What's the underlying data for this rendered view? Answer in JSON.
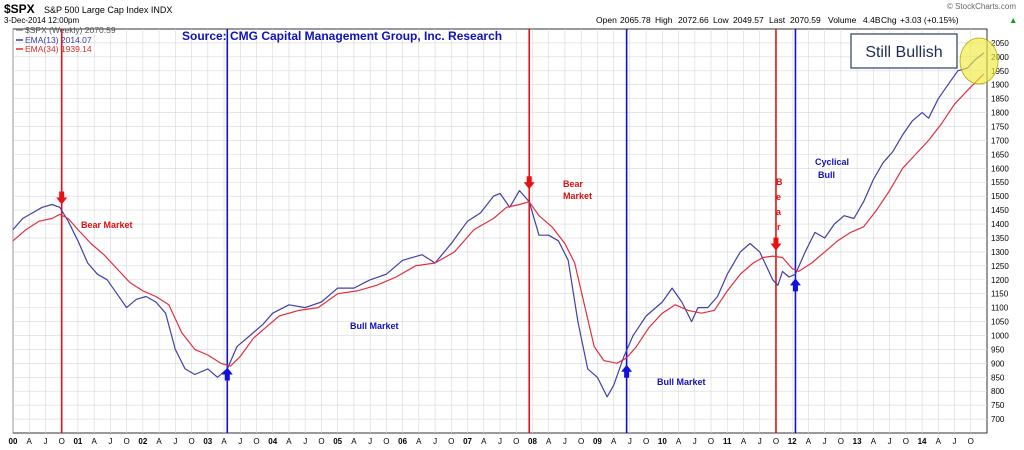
{
  "header": {
    "symbol": "$SPX",
    "name": "S&P 500 Large Cap Index INDX",
    "date": "3-Dec-2014 12:00pm",
    "brand": "© StockCharts.com",
    "quote": {
      "open_label": "Open",
      "open": "2065.78",
      "high_label": "High",
      "high": "2072.66",
      "low_label": "Low",
      "low": "2049.57",
      "last_label": "Last",
      "last": "2070.59",
      "volume_label": "Volume",
      "volume": "4.4B",
      "chg_label": "Chg",
      "chg": "+3.03 (+0.15%)",
      "chg_arrow": "▲"
    },
    "legend": [
      {
        "text": "$SPX (Weekly) 2070.59",
        "color": "#8a8a8a"
      },
      {
        "text": "EMA(13) 2014.07",
        "color": "#3a3aa8"
      },
      {
        "text": "EMA(34) 1939.14",
        "color": "#e02a2a"
      }
    ]
  },
  "source_text": "Source: CMG Capital Management Group, Inc. Research",
  "callout_text": "Still Bullish",
  "colors": {
    "ema13": "#4040a8",
    "ema34": "#e03040",
    "bear_line": "#e81010",
    "bull_line": "#1010d0",
    "bear_text": "#e01010",
    "bull_text": "#1010c0",
    "grid": "#d8d8d8",
    "highlight": "#f0ea40"
  },
  "annotations": {
    "bear_market_1": "Bear Market",
    "bull_market_1": "Bull Market",
    "bear_market_2_line1": "Bear",
    "bear_market_2_line2": "Market",
    "bull_market_2": "Bull Market",
    "bear_vertical": [
      "B",
      "e",
      "a",
      "r"
    ],
    "cyclical_bull_line1": "Cyclical",
    "cyclical_bull_line2": "Bull"
  },
  "chart_data": {
    "type": "line",
    "ylim": [
      650,
      2100
    ],
    "xlim": [
      2000.0,
      2015.0
    ],
    "y_ticks": [
      700,
      750,
      800,
      850,
      900,
      950,
      1000,
      1050,
      1100,
      1150,
      1200,
      1250,
      1300,
      1350,
      1400,
      1450,
      1500,
      1550,
      1600,
      1650,
      1700,
      1750,
      1800,
      1850,
      1900,
      1950,
      2000,
      2050
    ],
    "x_ticks": [
      {
        "x": 2000.0,
        "label": "00",
        "bold": true
      },
      {
        "x": 2000.25,
        "label": "A"
      },
      {
        "x": 2000.5,
        "label": "J"
      },
      {
        "x": 2000.75,
        "label": "O"
      },
      {
        "x": 2001.0,
        "label": "01",
        "bold": true
      },
      {
        "x": 2001.25,
        "label": "A"
      },
      {
        "x": 2001.5,
        "label": "J"
      },
      {
        "x": 2001.75,
        "label": "O"
      },
      {
        "x": 2002.0,
        "label": "02",
        "bold": true
      },
      {
        "x": 2002.25,
        "label": "A"
      },
      {
        "x": 2002.5,
        "label": "J"
      },
      {
        "x": 2002.75,
        "label": "O"
      },
      {
        "x": 2003.0,
        "label": "03",
        "bold": true
      },
      {
        "x": 2003.25,
        "label": "A"
      },
      {
        "x": 2003.5,
        "label": "J"
      },
      {
        "x": 2003.75,
        "label": "O"
      },
      {
        "x": 2004.0,
        "label": "04",
        "bold": true
      },
      {
        "x": 2004.25,
        "label": "A"
      },
      {
        "x": 2004.5,
        "label": "J"
      },
      {
        "x": 2004.75,
        "label": "O"
      },
      {
        "x": 2005.0,
        "label": "05",
        "bold": true
      },
      {
        "x": 2005.25,
        "label": "A"
      },
      {
        "x": 2005.5,
        "label": "J"
      },
      {
        "x": 2005.75,
        "label": "O"
      },
      {
        "x": 2006.0,
        "label": "06",
        "bold": true
      },
      {
        "x": 2006.25,
        "label": "A"
      },
      {
        "x": 2006.5,
        "label": "J"
      },
      {
        "x": 2006.75,
        "label": "O"
      },
      {
        "x": 2007.0,
        "label": "07",
        "bold": true
      },
      {
        "x": 2007.25,
        "label": "A"
      },
      {
        "x": 2007.5,
        "label": "J"
      },
      {
        "x": 2007.75,
        "label": "O"
      },
      {
        "x": 2008.0,
        "label": "08",
        "bold": true
      },
      {
        "x": 2008.25,
        "label": "A"
      },
      {
        "x": 2008.5,
        "label": "J"
      },
      {
        "x": 2008.75,
        "label": "O"
      },
      {
        "x": 2009.0,
        "label": "09",
        "bold": true
      },
      {
        "x": 2009.25,
        "label": "A"
      },
      {
        "x": 2009.5,
        "label": "J"
      },
      {
        "x": 2009.75,
        "label": "O"
      },
      {
        "x": 2010.0,
        "label": "10",
        "bold": true
      },
      {
        "x": 2010.25,
        "label": "A"
      },
      {
        "x": 2010.5,
        "label": "J"
      },
      {
        "x": 2010.75,
        "label": "O"
      },
      {
        "x": 2011.0,
        "label": "11",
        "bold": true
      },
      {
        "x": 2011.25,
        "label": "A"
      },
      {
        "x": 2011.5,
        "label": "J"
      },
      {
        "x": 2011.75,
        "label": "O"
      },
      {
        "x": 2012.0,
        "label": "12",
        "bold": true
      },
      {
        "x": 2012.25,
        "label": "A"
      },
      {
        "x": 2012.5,
        "label": "J"
      },
      {
        "x": 2012.75,
        "label": "O"
      },
      {
        "x": 2013.0,
        "label": "13",
        "bold": true
      },
      {
        "x": 2013.25,
        "label": "A"
      },
      {
        "x": 2013.5,
        "label": "J"
      },
      {
        "x": 2013.75,
        "label": "O"
      },
      {
        "x": 2014.0,
        "label": "14",
        "bold": true
      },
      {
        "x": 2014.25,
        "label": "A"
      },
      {
        "x": 2014.5,
        "label": "J"
      },
      {
        "x": 2014.75,
        "label": "O"
      }
    ],
    "signal_lines": [
      {
        "x": 2000.75,
        "kind": "bear"
      },
      {
        "x": 2003.3,
        "kind": "bull"
      },
      {
        "x": 2007.95,
        "kind": "bear"
      },
      {
        "x": 2009.45,
        "kind": "bull"
      },
      {
        "x": 2011.75,
        "kind": "bear"
      },
      {
        "x": 2012.05,
        "kind": "bull"
      }
    ],
    "signal_arrows": [
      {
        "x": 2000.75,
        "y": 1470,
        "kind": "bear"
      },
      {
        "x": 2003.3,
        "y": 885,
        "kind": "bull"
      },
      {
        "x": 2007.95,
        "y": 1525,
        "kind": "bear"
      },
      {
        "x": 2009.45,
        "y": 895,
        "kind": "bull"
      },
      {
        "x": 2011.75,
        "y": 1305,
        "kind": "bear"
      },
      {
        "x": 2012.05,
        "y": 1205,
        "kind": "bull"
      }
    ],
    "series": [
      {
        "name": "EMA(13)",
        "x": [
          2000.0,
          2000.15,
          2000.3,
          2000.45,
          2000.6,
          2000.72,
          2000.85,
          2001.0,
          2001.15,
          2001.3,
          2001.45,
          2001.6,
          2001.75,
          2001.9,
          2002.05,
          2002.2,
          2002.35,
          2002.5,
          2002.65,
          2002.8,
          2003.0,
          2003.15,
          2003.3,
          2003.45,
          2003.65,
          2003.85,
          2004.0,
          2004.25,
          2004.5,
          2004.75,
          2005.0,
          2005.25,
          2005.5,
          2005.75,
          2006.0,
          2006.3,
          2006.5,
          2006.75,
          2007.0,
          2007.2,
          2007.4,
          2007.5,
          2007.65,
          2007.8,
          2007.95,
          2008.1,
          2008.25,
          2008.4,
          2008.55,
          2008.7,
          2008.85,
          2009.0,
          2009.15,
          2009.25,
          2009.4,
          2009.55,
          2009.75,
          2010.0,
          2010.15,
          2010.3,
          2010.45,
          2010.55,
          2010.7,
          2010.85,
          2011.0,
          2011.2,
          2011.35,
          2011.5,
          2011.6,
          2011.7,
          2011.78,
          2011.85,
          2011.95,
          2012.05,
          2012.2,
          2012.35,
          2012.5,
          2012.65,
          2012.8,
          2012.95,
          2013.1,
          2013.25,
          2013.4,
          2013.55,
          2013.7,
          2013.85,
          2014.0,
          2014.1,
          2014.25,
          2014.4,
          2014.55,
          2014.7,
          2014.82,
          2014.95
        ],
        "y": [
          1380,
          1420,
          1440,
          1460,
          1470,
          1460,
          1410,
          1340,
          1260,
          1220,
          1200,
          1150,
          1100,
          1130,
          1140,
          1120,
          1080,
          950,
          880,
          860,
          880,
          850,
          880,
          960,
          1000,
          1040,
          1080,
          1110,
          1100,
          1120,
          1170,
          1170,
          1200,
          1220,
          1270,
          1290,
          1260,
          1330,
          1410,
          1440,
          1500,
          1510,
          1460,
          1520,
          1480,
          1360,
          1360,
          1340,
          1270,
          1050,
          880,
          850,
          780,
          820,
          920,
          1000,
          1070,
          1120,
          1170,
          1120,
          1050,
          1100,
          1100,
          1140,
          1220,
          1300,
          1330,
          1300,
          1250,
          1200,
          1180,
          1230,
          1210,
          1220,
          1300,
          1370,
          1350,
          1400,
          1430,
          1420,
          1480,
          1560,
          1620,
          1660,
          1720,
          1770,
          1800,
          1780,
          1850,
          1900,
          1950,
          1960,
          1990,
          2014
        ]
      },
      {
        "name": "EMA(34)",
        "x": [
          2000.0,
          2000.2,
          2000.4,
          2000.6,
          2000.72,
          2000.85,
          2001.0,
          2001.2,
          2001.4,
          2001.6,
          2001.8,
          2002.0,
          2002.2,
          2002.4,
          2002.6,
          2002.8,
          2003.0,
          2003.2,
          2003.35,
          2003.5,
          2003.7,
          2003.9,
          2004.1,
          2004.4,
          2004.7,
          2005.0,
          2005.3,
          2005.6,
          2005.9,
          2006.2,
          2006.5,
          2006.8,
          2007.1,
          2007.4,
          2007.6,
          2007.8,
          2007.95,
          2008.1,
          2008.3,
          2008.5,
          2008.65,
          2008.8,
          2008.95,
          2009.1,
          2009.3,
          2009.45,
          2009.6,
          2009.8,
          2010.0,
          2010.2,
          2010.4,
          2010.6,
          2010.8,
          2011.0,
          2011.2,
          2011.4,
          2011.55,
          2011.7,
          2011.85,
          2012.0,
          2012.1,
          2012.3,
          2012.5,
          2012.7,
          2012.9,
          2013.1,
          2013.3,
          2013.5,
          2013.7,
          2013.9,
          2014.1,
          2014.3,
          2014.5,
          2014.7,
          2014.95
        ],
        "y": [
          1340,
          1380,
          1410,
          1420,
          1435,
          1420,
          1380,
          1330,
          1290,
          1240,
          1190,
          1160,
          1140,
          1110,
          1010,
          950,
          930,
          900,
          890,
          925,
          990,
          1030,
          1070,
          1090,
          1100,
          1150,
          1160,
          1180,
          1210,
          1250,
          1260,
          1300,
          1380,
          1420,
          1460,
          1470,
          1480,
          1430,
          1390,
          1330,
          1260,
          1110,
          960,
          910,
          900,
          920,
          960,
          1030,
          1080,
          1110,
          1090,
          1080,
          1090,
          1160,
          1220,
          1260,
          1280,
          1285,
          1280,
          1240,
          1230,
          1260,
          1300,
          1340,
          1370,
          1390,
          1450,
          1520,
          1600,
          1650,
          1700,
          1760,
          1830,
          1880,
          1939
        ]
      }
    ]
  }
}
